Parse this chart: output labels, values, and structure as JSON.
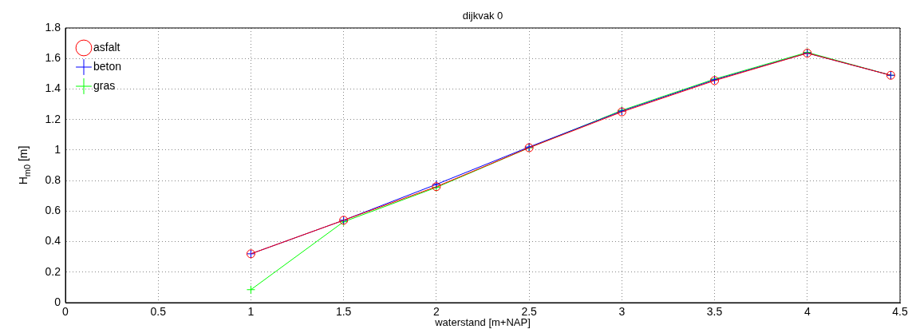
{
  "chart_data": {
    "type": "line",
    "title": "dijkvak 0",
    "xlabel": "waterstand [m+NAP]",
    "ylabel": "H$_{m0}$ [m]",
    "x": [
      1,
      1.5,
      2,
      2.5,
      3,
      3.5,
      4,
      4.45
    ],
    "series": [
      {
        "name": "asfalt",
        "color": "#ff0000",
        "marker": "circle",
        "values": [
          0.32,
          0.54,
          0.76,
          1.015,
          1.25,
          1.455,
          1.635,
          1.49
        ]
      },
      {
        "name": "beton",
        "color": "#0000ff",
        "marker": "cross",
        "values": [
          0.32,
          0.54,
          0.775,
          1.02,
          1.255,
          1.46,
          1.635,
          1.49
        ]
      },
      {
        "name": "gras",
        "color": "#00ff00",
        "marker": "cross",
        "values": [
          0.085,
          0.53,
          0.755,
          1.015,
          1.26,
          1.465,
          1.64,
          1.49
        ]
      }
    ],
    "xlim": [
      0,
      4.5
    ],
    "xticks": [
      0,
      0.5,
      1,
      1.5,
      2,
      2.5,
      3,
      3.5,
      4,
      4.5
    ],
    "ylim": [
      0,
      1.8
    ],
    "yticks": [
      0,
      0.2,
      0.4,
      0.6,
      0.8,
      1,
      1.2,
      1.4,
      1.6,
      1.8
    ],
    "grid": true,
    "legend": "top left"
  }
}
